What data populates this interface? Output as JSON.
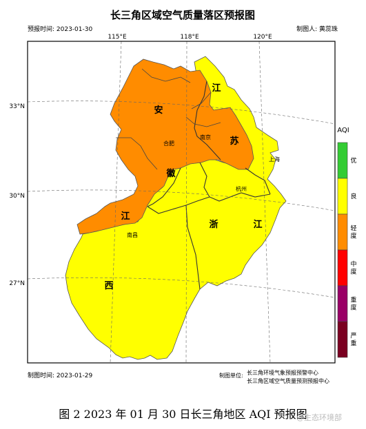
{
  "header": {
    "title": "长三角区域空气质量落区预报图",
    "forecast_time": "预报时间: 2023-01-30",
    "maker": "制图人: 黄蕊珠"
  },
  "map": {
    "lon_labels": [
      "115°E",
      "118°E",
      "120°E"
    ],
    "lat_labels": [
      "33°N",
      "30°N",
      "27°N"
    ],
    "province_labels": [
      "安",
      "徽",
      "江",
      "苏",
      "浙",
      "江",
      "江",
      "西"
    ],
    "city_labels": [
      "合肥",
      "南京",
      "上海",
      "杭州",
      "南昌"
    ]
  },
  "legend": {
    "title": "AQI",
    "items": [
      {
        "label": "优",
        "color": "#33cc33"
      },
      {
        "label": "良",
        "color": "#ffff00"
      },
      {
        "label": "轻度",
        "color": "#ff8c00"
      },
      {
        "label": "中度",
        "color": "#ff0000"
      },
      {
        "label": "重度",
        "color": "#990066"
      },
      {
        "label": "严重",
        "color": "#7a0020"
      }
    ]
  },
  "footer": {
    "made_time": "制图时间: 2023-01-29",
    "unit_label": "制图单位:",
    "unit_lines": [
      "长三角环境气象预报预警中心",
      "长三角区域空气质量预测预报中心"
    ]
  },
  "caption": "图 2 2023 年 01 月 30 日长三角地区 AQI 预报图",
  "watermark": "@生态环境部"
}
